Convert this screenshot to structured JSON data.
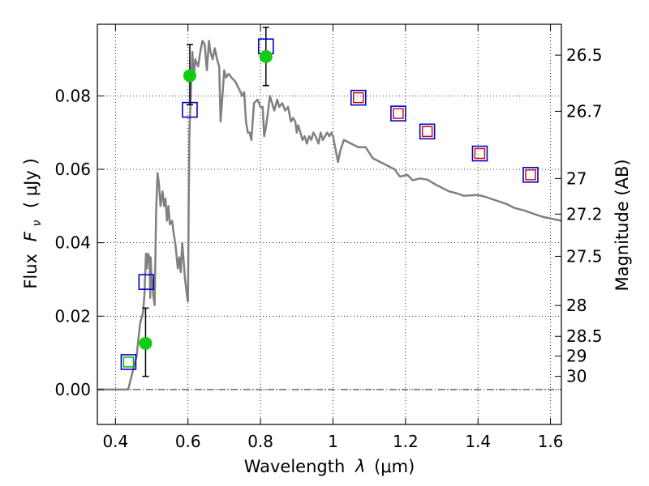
{
  "chart_data": {
    "type": "scatter",
    "xlabel": "Wavelength",
    "xlabel_symbol": "λ",
    "xlabel_unit": "(μm)",
    "ylabel": "Flux",
    "ylabel_symbol": "F",
    "ylabel_subscript": "ν",
    "ylabel_unit": "( μJy )",
    "y2label": "Magnitude (AB)",
    "xlim": [
      0.35,
      1.63
    ],
    "ylim": [
      -0.0095,
      0.0995
    ],
    "grid": true,
    "x_ticks": [
      {
        "value": 0.4,
        "label": "0.4"
      },
      {
        "value": 0.6,
        "label": "0.6"
      },
      {
        "value": 0.8,
        "label": "0.8"
      },
      {
        "value": 1.0,
        "label": "1"
      },
      {
        "value": 1.2,
        "label": "1.2"
      },
      {
        "value": 1.4,
        "label": "1.4"
      },
      {
        "value": 1.6,
        "label": "1.6"
      }
    ],
    "y_ticks": [
      {
        "value": 0.0,
        "label": "0.00"
      },
      {
        "value": 0.02,
        "label": "0.02"
      },
      {
        "value": 0.04,
        "label": "0.04"
      },
      {
        "value": 0.06,
        "label": "0.06"
      },
      {
        "value": 0.08,
        "label": "0.08"
      }
    ],
    "mag_ticks": [
      {
        "flux": 0.0911,
        "label": "26.5"
      },
      {
        "flux": 0.0758,
        "label": "26.7"
      },
      {
        "flux": 0.0575,
        "label": "27"
      },
      {
        "flux": 0.0478,
        "label": "27.2"
      },
      {
        "flux": 0.0363,
        "label": "27.5"
      },
      {
        "flux": 0.0229,
        "label": "28"
      },
      {
        "flux": 0.0145,
        "label": "28.5"
      },
      {
        "flux": 0.0091,
        "label": "29"
      },
      {
        "flux": 0.0036,
        "label": "30"
      }
    ],
    "series": [
      {
        "kind": "line",
        "color": "#808080",
        "points": [
          [
            0.35,
            0.0
          ],
          [
            0.435,
            0.0
          ],
          [
            0.445,
            0.004
          ],
          [
            0.458,
            0.009
          ],
          [
            0.468,
            0.018
          ],
          [
            0.476,
            0.021
          ],
          [
            0.48,
            0.026
          ],
          [
            0.484,
            0.037
          ],
          [
            0.487,
            0.033
          ],
          [
            0.49,
            0.037
          ],
          [
            0.494,
            0.036
          ],
          [
            0.496,
            0.025
          ],
          [
            0.497,
            0.036
          ],
          [
            0.5,
            0.03
          ],
          [
            0.504,
            0.026
          ],
          [
            0.508,
            0.023
          ],
          [
            0.512,
            0.048
          ],
          [
            0.516,
            0.059
          ],
          [
            0.52,
            0.056
          ],
          [
            0.524,
            0.05
          ],
          [
            0.53,
            0.054
          ],
          [
            0.534,
            0.05
          ],
          [
            0.538,
            0.052
          ],
          [
            0.542,
            0.046
          ],
          [
            0.546,
            0.05
          ],
          [
            0.55,
            0.045
          ],
          [
            0.556,
            0.046
          ],
          [
            0.56,
            0.043
          ],
          [
            0.566,
            0.039
          ],
          [
            0.572,
            0.033
          ],
          [
            0.576,
            0.036
          ],
          [
            0.58,
            0.032
          ],
          [
            0.584,
            0.04
          ],
          [
            0.588,
            0.035
          ],
          [
            0.592,
            0.03
          ],
          [
            0.598,
            0.025
          ],
          [
            0.6,
            0.024
          ],
          [
            0.602,
            0.05
          ],
          [
            0.604,
            0.07
          ],
          [
            0.608,
            0.081
          ],
          [
            0.612,
            0.092
          ],
          [
            0.616,
            0.085
          ],
          [
            0.62,
            0.09
          ],
          [
            0.628,
            0.088
          ],
          [
            0.634,
            0.092
          ],
          [
            0.64,
            0.095
          ],
          [
            0.646,
            0.094
          ],
          [
            0.652,
            0.087
          ],
          [
            0.658,
            0.095
          ],
          [
            0.662,
            0.092
          ],
          [
            0.668,
            0.09
          ],
          [
            0.674,
            0.093
          ],
          [
            0.68,
            0.09
          ],
          [
            0.686,
            0.088
          ],
          [
            0.69,
            0.073
          ],
          [
            0.695,
            0.08
          ],
          [
            0.7,
            0.087
          ],
          [
            0.705,
            0.085
          ],
          [
            0.712,
            0.086
          ],
          [
            0.72,
            0.085
          ],
          [
            0.73,
            0.084
          ],
          [
            0.74,
            0.082
          ],
          [
            0.75,
            0.08
          ],
          [
            0.755,
            0.081
          ],
          [
            0.76,
            0.073
          ],
          [
            0.765,
            0.07
          ],
          [
            0.77,
            0.07
          ],
          [
            0.775,
            0.068
          ],
          [
            0.782,
            0.078
          ],
          [
            0.792,
            0.079
          ],
          [
            0.8,
            0.077
          ],
          [
            0.806,
            0.077
          ],
          [
            0.81,
            0.069
          ],
          [
            0.814,
            0.071
          ],
          [
            0.82,
            0.075
          ],
          [
            0.826,
            0.08
          ],
          [
            0.832,
            0.078
          ],
          [
            0.838,
            0.076
          ],
          [
            0.846,
            0.079
          ],
          [
            0.852,
            0.077
          ],
          [
            0.86,
            0.078
          ],
          [
            0.868,
            0.076
          ],
          [
            0.876,
            0.077
          ],
          [
            0.884,
            0.073
          ],
          [
            0.89,
            0.074
          ],
          [
            0.896,
            0.073
          ],
          [
            0.9,
            0.07
          ],
          [
            0.904,
            0.072
          ],
          [
            0.91,
            0.07
          ],
          [
            0.916,
            0.068
          ],
          [
            0.922,
            0.069
          ],
          [
            0.928,
            0.067
          ],
          [
            0.934,
            0.069
          ],
          [
            0.94,
            0.068
          ],
          [
            0.946,
            0.07
          ],
          [
            0.952,
            0.069
          ],
          [
            0.96,
            0.067
          ],
          [
            0.966,
            0.07
          ],
          [
            0.972,
            0.068
          ],
          [
            0.978,
            0.069
          ],
          [
            0.984,
            0.07
          ],
          [
            0.99,
            0.069
          ],
          [
            0.996,
            0.07
          ],
          [
            1.0,
            0.069
          ],
          [
            1.008,
            0.065
          ],
          [
            1.014,
            0.062
          ],
          [
            1.02,
            0.065
          ],
          [
            1.03,
            0.068
          ],
          [
            1.05,
            0.067
          ],
          [
            1.07,
            0.066
          ],
          [
            1.09,
            0.066
          ],
          [
            1.11,
            0.063
          ],
          [
            1.13,
            0.062
          ],
          [
            1.15,
            0.061
          ],
          [
            1.17,
            0.06
          ],
          [
            1.185,
            0.058
          ],
          [
            1.205,
            0.0585
          ],
          [
            1.22,
            0.057
          ],
          [
            1.24,
            0.0575
          ],
          [
            1.26,
            0.0572
          ],
          [
            1.28,
            0.056
          ],
          [
            1.3,
            0.055
          ],
          [
            1.32,
            0.054
          ],
          [
            1.34,
            0.0535
          ],
          [
            1.36,
            0.0528
          ],
          [
            1.4,
            0.053
          ],
          [
            1.42,
            0.0525
          ],
          [
            1.45,
            0.0515
          ],
          [
            1.48,
            0.0505
          ],
          [
            1.5,
            0.0495
          ],
          [
            1.53,
            0.0487
          ],
          [
            1.55,
            0.048
          ],
          [
            1.58,
            0.047
          ],
          [
            1.6,
            0.0466
          ],
          [
            1.63,
            0.046
          ]
        ]
      },
      {
        "kind": "open-square",
        "color": "#0000cc",
        "points": [
          [
            0.436,
            0.0075
          ],
          [
            0.485,
            0.0293
          ],
          [
            0.605,
            0.0762
          ],
          [
            0.815,
            0.0935
          ],
          [
            1.07,
            0.0795
          ],
          [
            1.18,
            0.0752
          ],
          [
            1.26,
            0.0703
          ],
          [
            1.405,
            0.0643
          ],
          [
            1.545,
            0.0585
          ]
        ]
      },
      {
        "kind": "open-square-small",
        "color": "#cc0000",
        "points": [
          [
            1.07,
            0.0795
          ],
          [
            1.18,
            0.0752
          ],
          [
            1.26,
            0.0703
          ],
          [
            1.405,
            0.0643
          ],
          [
            1.545,
            0.0585
          ]
        ]
      },
      {
        "kind": "open-square-small",
        "color": "#00aa00",
        "points": [
          [
            0.436,
            0.0075
          ]
        ]
      },
      {
        "kind": "filled-circle",
        "color": "#11cc11",
        "points": [
          [
            0.483,
            0.0126
          ],
          [
            0.605,
            0.0855
          ],
          [
            0.815,
            0.0907
          ]
        ]
      },
      {
        "kind": "errorbar",
        "color": "#000000",
        "bars": [
          {
            "x": 0.483,
            "low": 0.0036,
            "high": 0.0222
          },
          {
            "x": 0.605,
            "low": 0.0776,
            "high": 0.094
          },
          {
            "x": 0.815,
            "low": 0.0828,
            "high": 0.0987
          }
        ]
      }
    ]
  }
}
